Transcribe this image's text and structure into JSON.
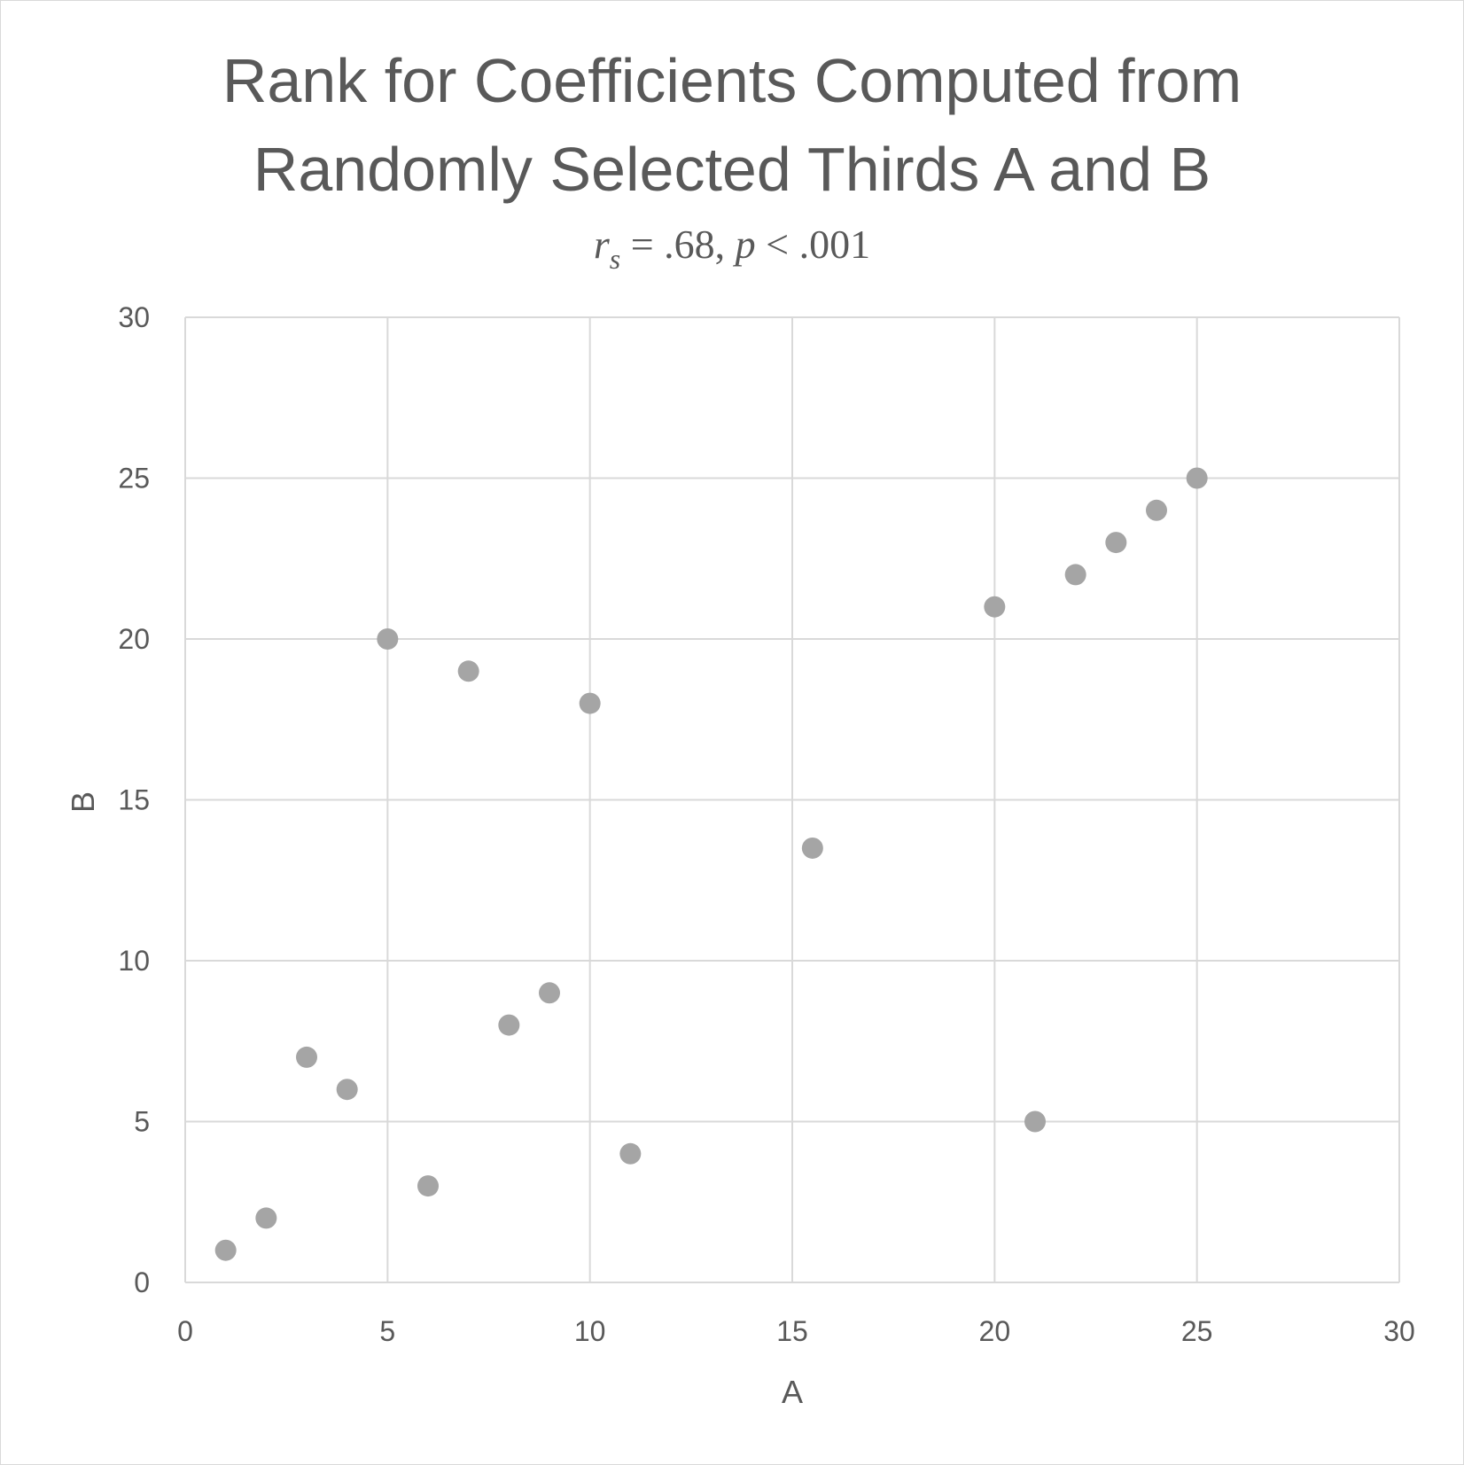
{
  "chart_data": {
    "type": "scatter",
    "title_lines": [
      "Rank for Coefficients Computed from",
      "Randomly Selected Thirds A and B"
    ],
    "subtitle": "r_s = .68, p < .001",
    "subtitle_parts": {
      "r": "r",
      "s": "s",
      "rest1": " = .68, ",
      "p": "p",
      "rest2": " < .001"
    },
    "xlabel": "A",
    "ylabel": "B",
    "xlim": [
      0,
      30
    ],
    "ylim": [
      0,
      30
    ],
    "xticks": [
      0,
      5,
      10,
      15,
      20,
      25,
      30
    ],
    "yticks": [
      0,
      5,
      10,
      15,
      20,
      25,
      30
    ],
    "xtick_labels": [
      "0",
      "5",
      "10",
      "15",
      "20",
      "25",
      "30"
    ],
    "ytick_labels": [
      "0",
      "5",
      "10",
      "15",
      "20",
      "25",
      "30"
    ],
    "grid": true,
    "legend": "none",
    "marker_color": "#a5a5a5",
    "points": [
      {
        "x": 1,
        "y": 1
      },
      {
        "x": 2,
        "y": 2
      },
      {
        "x": 3,
        "y": 7
      },
      {
        "x": 4,
        "y": 6
      },
      {
        "x": 5,
        "y": 20
      },
      {
        "x": 6,
        "y": 3
      },
      {
        "x": 7,
        "y": 19
      },
      {
        "x": 8,
        "y": 8
      },
      {
        "x": 9,
        "y": 9
      },
      {
        "x": 10,
        "y": 18
      },
      {
        "x": 11,
        "y": 4
      },
      {
        "x": 15.5,
        "y": 13.5
      },
      {
        "x": 20,
        "y": 21
      },
      {
        "x": 21,
        "y": 5
      },
      {
        "x": 22,
        "y": 22
      },
      {
        "x": 23,
        "y": 23
      },
      {
        "x": 24,
        "y": 24
      },
      {
        "x": 25,
        "y": 25
      }
    ]
  }
}
